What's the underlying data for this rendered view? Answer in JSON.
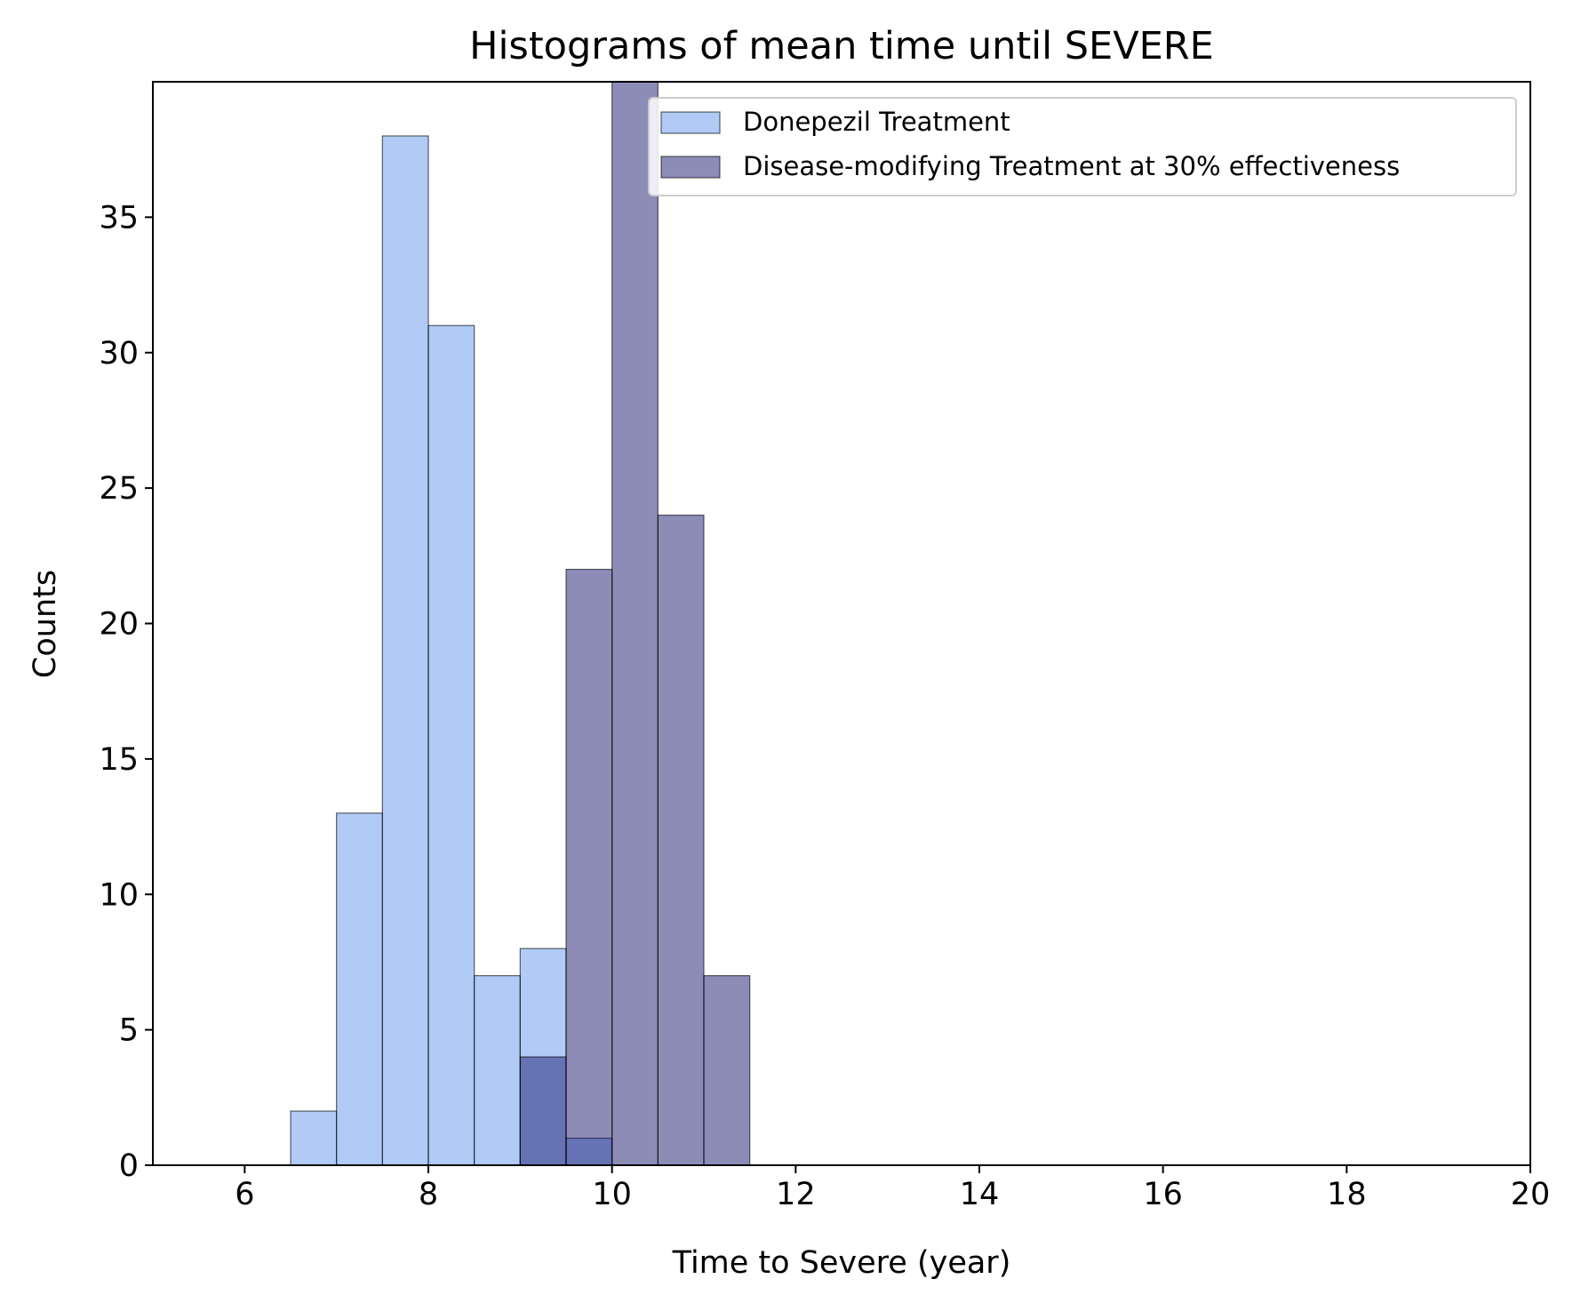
{
  "chart_data": {
    "type": "bar",
    "title": "Histograms of mean time until SEVERE",
    "xlabel": "Time to Severe (year)",
    "ylabel": "Counts",
    "xlim": [
      5,
      20
    ],
    "ylim": [
      0,
      40
    ],
    "xticks": [
      6,
      8,
      10,
      12,
      14,
      16,
      18,
      20
    ],
    "yticks": [
      0,
      5,
      10,
      15,
      20,
      25,
      30,
      35
    ],
    "grid": false,
    "legend_position": "top-right",
    "series": [
      {
        "name": "Donepezil Treatment",
        "color": "#6495ED",
        "bins": [
          {
            "x0": 6.5,
            "x1": 7.0,
            "count": 2
          },
          {
            "x0": 7.0,
            "x1": 7.5,
            "count": 13
          },
          {
            "x0": 7.5,
            "x1": 8.0,
            "count": 38
          },
          {
            "x0": 8.0,
            "x1": 8.5,
            "count": 31
          },
          {
            "x0": 8.5,
            "x1": 9.0,
            "count": 7
          },
          {
            "x0": 9.0,
            "x1": 9.5,
            "count": 8
          },
          {
            "x0": 9.5,
            "x1": 10.0,
            "count": 1
          }
        ]
      },
      {
        "name": "Disease-modifying Treatment at 30% effectiveness",
        "color": "#191970",
        "bins": [
          {
            "x0": 9.0,
            "x1": 9.5,
            "count": 4
          },
          {
            "x0": 9.5,
            "x1": 10.0,
            "count": 22
          },
          {
            "x0": 10.0,
            "x1": 10.5,
            "count": 40
          },
          {
            "x0": 10.5,
            "x1": 11.0,
            "count": 24
          },
          {
            "x0": 11.0,
            "x1": 11.5,
            "count": 7
          }
        ]
      }
    ]
  }
}
